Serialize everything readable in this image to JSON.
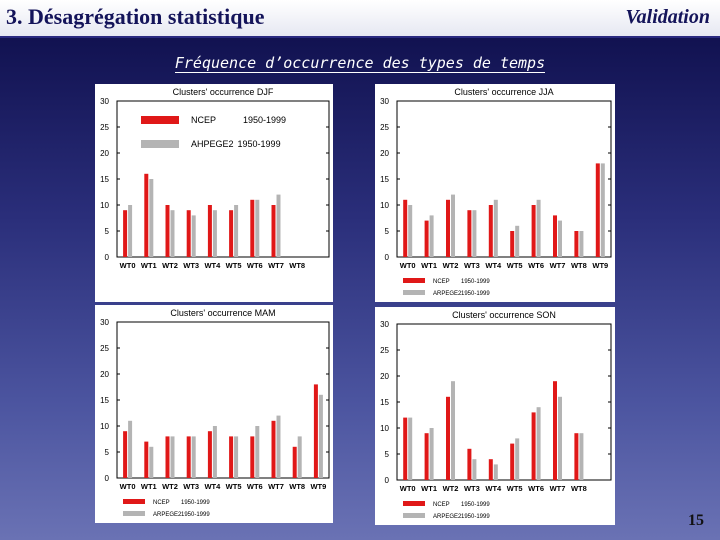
{
  "header": {
    "title": "3. Désagrégation statistique",
    "section": "Validation"
  },
  "subtitle": "Fréquence d’occurrence des types de temps",
  "page_number": "15",
  "colors": {
    "ncep": "#e01818",
    "arpege": "#b4b4b4"
  },
  "chart_data": [
    {
      "type": "bar",
      "title": "Clusters' occurrence DJF",
      "categories": [
        "WT0",
        "WT1",
        "WT2",
        "WT3",
        "WT4",
        "WT5",
        "WT6",
        "WT7",
        "WT8"
      ],
      "series": [
        {
          "name": "NCEP",
          "period": "1950-1999",
          "values": [
            9,
            16,
            10,
            9,
            10,
            9,
            11,
            10,
            0
          ]
        },
        {
          "name": "AHPEGE2",
          "period": "1950-1999",
          "values": [
            10,
            15,
            9,
            8,
            9,
            10,
            11,
            12,
            0
          ]
        }
      ],
      "ylim": [
        0,
        30
      ],
      "yticks": [
        0,
        5,
        10,
        15,
        20,
        25,
        30
      ],
      "legend": "inside-top-left",
      "legend_size": "large",
      "xlabel": "",
      "ylabel": ""
    },
    {
      "type": "bar",
      "title": "Clusters' occurrence JJA",
      "categories": [
        "WT0",
        "WT1",
        "WT2",
        "WT3",
        "WT4",
        "WT5",
        "WT6",
        "WT7",
        "WT8",
        "WT9"
      ],
      "series": [
        {
          "name": "NCEP",
          "period": "1950-1999",
          "values": [
            11,
            7,
            11,
            9,
            10,
            5,
            10,
            8,
            5,
            18
          ]
        },
        {
          "name": "ARPEGE2",
          "period": "1950-1999",
          "values": [
            10,
            8,
            12,
            9,
            11,
            6,
            11,
            7,
            5,
            18
          ]
        }
      ],
      "ylim": [
        0,
        30
      ],
      "yticks": [
        0,
        5,
        10,
        15,
        20,
        25,
        30
      ],
      "legend": "bottom",
      "legend_size": "small",
      "xlabel": "",
      "ylabel": ""
    },
    {
      "type": "bar",
      "title": "Clusters' occurrence MAM",
      "categories": [
        "WT0",
        "WT1",
        "WT2",
        "WT3",
        "WT4",
        "WT5",
        "WT6",
        "WT7",
        "WT8",
        "WT9"
      ],
      "series": [
        {
          "name": "NCEP",
          "period": "1950-1999",
          "values": [
            9,
            7,
            8,
            8,
            9,
            8,
            8,
            11,
            6,
            18
          ]
        },
        {
          "name": "ARPEGE2",
          "period": "1950-1999",
          "values": [
            11,
            6,
            8,
            8,
            10,
            8,
            10,
            12,
            8,
            16
          ]
        }
      ],
      "ylim": [
        0,
        30
      ],
      "yticks": [
        0,
        5,
        10,
        15,
        20,
        25,
        30
      ],
      "legend": "bottom",
      "legend_size": "small",
      "xlabel": "",
      "ylabel": ""
    },
    {
      "type": "bar",
      "title": "Clusters' occurrence SON",
      "categories": [
        "WT0",
        "WT1",
        "WT2",
        "WT3",
        "WT4",
        "WT5",
        "WT6",
        "WT7",
        "WT8"
      ],
      "series": [
        {
          "name": "NCEP",
          "period": "1950-1999",
          "values": [
            12,
            9,
            16,
            6,
            4,
            7,
            13,
            19,
            9
          ]
        },
        {
          "name": "ARPEGE2",
          "period": "1950-1999",
          "values": [
            12,
            10,
            19,
            4,
            3,
            8,
            14,
            16,
            9
          ]
        }
      ],
      "ylim": [
        0,
        30
      ],
      "yticks": [
        0,
        5,
        10,
        15,
        20,
        25,
        30
      ],
      "legend": "bottom",
      "legend_size": "small",
      "xlabel": "",
      "ylabel": ""
    }
  ]
}
